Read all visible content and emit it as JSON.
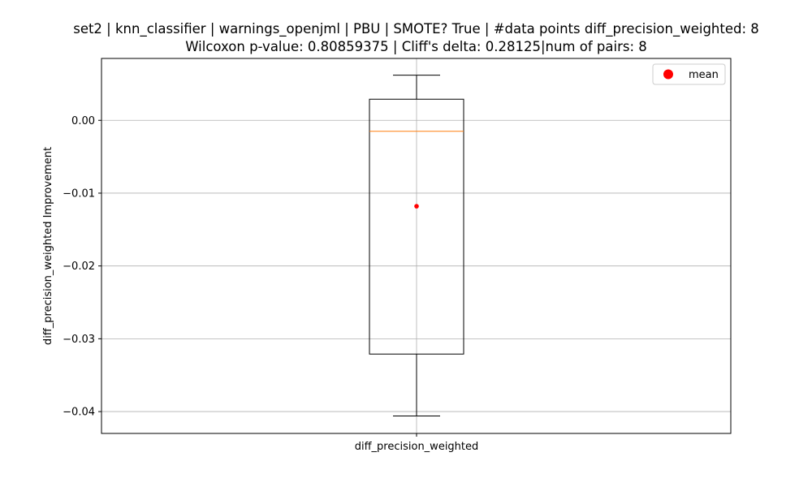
{
  "chart_data": {
    "type": "box",
    "title_line1": "set2 | knn_classifier | warnings_openjml | PBU | SMOTE? True | #data points diff_precision_weighted: 8",
    "title_line2": "Wilcoxon p-value: 0.80859375 | Cliff's delta: 0.28125|num of pairs: 8",
    "xlabel": "",
    "ylabel": "diff_precision_weighted Improvement",
    "categories": [
      "diff_precision_weighted"
    ],
    "box": {
      "whisker_low": -0.0406,
      "q1": -0.0321,
      "median": -0.0015,
      "q3": 0.0029,
      "whisker_high": 0.0062,
      "mean": -0.0118
    },
    "ylim": [
      -0.043,
      0.0085
    ],
    "yticks": [
      0.0,
      -0.01,
      -0.02,
      -0.03,
      -0.04
    ],
    "ytick_labels": [
      "0.00",
      "−0.01",
      "−0.02",
      "−0.03",
      "−0.04"
    ],
    "grid": true,
    "legend": {
      "position": "top-right",
      "entries": [
        {
          "label": "mean",
          "color": "#ff0000",
          "marker": "circle"
        }
      ]
    },
    "colors": {
      "box": "#000000",
      "median": "#ff7f0e",
      "mean": "#ff0000",
      "grid": "#b0b0b0"
    }
  }
}
